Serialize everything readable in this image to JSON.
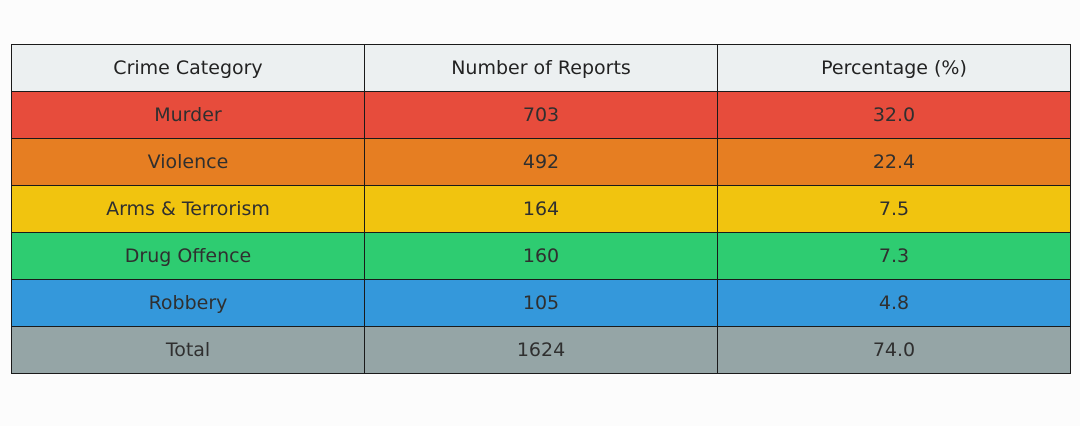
{
  "chart_data": {
    "type": "table",
    "columns": [
      "Crime Category",
      "Number of Reports",
      "Percentage (%)"
    ],
    "rows": [
      {
        "category": "Murder",
        "reports": "703",
        "percentage": "32.0",
        "color": "#e74c3c"
      },
      {
        "category": "Violence",
        "reports": "492",
        "percentage": "22.4",
        "color": "#e67e22"
      },
      {
        "category": "Arms & Terrorism",
        "reports": "164",
        "percentage": "7.5",
        "color": "#f1c40f"
      },
      {
        "category": "Drug Offence",
        "reports": "160",
        "percentage": "7.3",
        "color": "#2ecc71"
      },
      {
        "category": "Robbery",
        "reports": "105",
        "percentage": "4.8",
        "color": "#3498db"
      },
      {
        "category": "Total",
        "reports": "1624",
        "percentage": "74.0",
        "color": "#95a5a6"
      }
    ],
    "header_color": "#ecf0f1"
  }
}
